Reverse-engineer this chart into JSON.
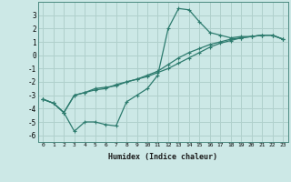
{
  "xlabel": "Humidex (Indice chaleur)",
  "x_values": [
    0,
    1,
    2,
    3,
    4,
    5,
    6,
    7,
    8,
    9,
    10,
    11,
    12,
    13,
    14,
    15,
    16,
    17,
    18,
    19,
    20,
    21,
    22,
    23
  ],
  "line1_y": [
    -3.3,
    -3.6,
    -4.3,
    -5.7,
    -5.0,
    -5.0,
    -5.2,
    -5.3,
    -3.5,
    -3.0,
    -2.5,
    -1.5,
    2.0,
    3.5,
    3.4,
    2.5,
    1.7,
    1.5,
    1.3,
    1.4,
    1.4,
    1.5,
    1.5,
    1.2
  ],
  "line2_y": [
    -3.3,
    -3.6,
    -4.3,
    -3.0,
    -2.8,
    -2.5,
    -2.4,
    -2.3,
    -2.0,
    -1.8,
    -1.5,
    -1.2,
    -0.7,
    -0.2,
    0.2,
    0.5,
    0.8,
    1.0,
    1.2,
    1.3,
    1.4,
    1.5,
    1.5,
    1.2
  ],
  "line3_y": [
    -3.3,
    -3.6,
    -4.3,
    -3.0,
    -2.8,
    -2.6,
    -2.5,
    -2.2,
    -2.0,
    -1.8,
    -1.6,
    -1.3,
    -1.0,
    -0.6,
    -0.2,
    0.2,
    0.6,
    0.9,
    1.1,
    1.3,
    1.4,
    1.5,
    1.5,
    1.2
  ],
  "line_color": "#2d7b6e",
  "bg_color": "#cce8e6",
  "grid_color": "#b0d0cc",
  "ylim": [
    -6.5,
    4.0
  ],
  "xlim": [
    -0.5,
    23.5
  ],
  "yticks": [
    -6,
    -5,
    -4,
    -3,
    -2,
    -1,
    0,
    1,
    2,
    3
  ],
  "xticks": [
    0,
    1,
    2,
    3,
    4,
    5,
    6,
    7,
    8,
    9,
    10,
    11,
    12,
    13,
    14,
    15,
    16,
    17,
    18,
    19,
    20,
    21,
    22,
    23
  ]
}
